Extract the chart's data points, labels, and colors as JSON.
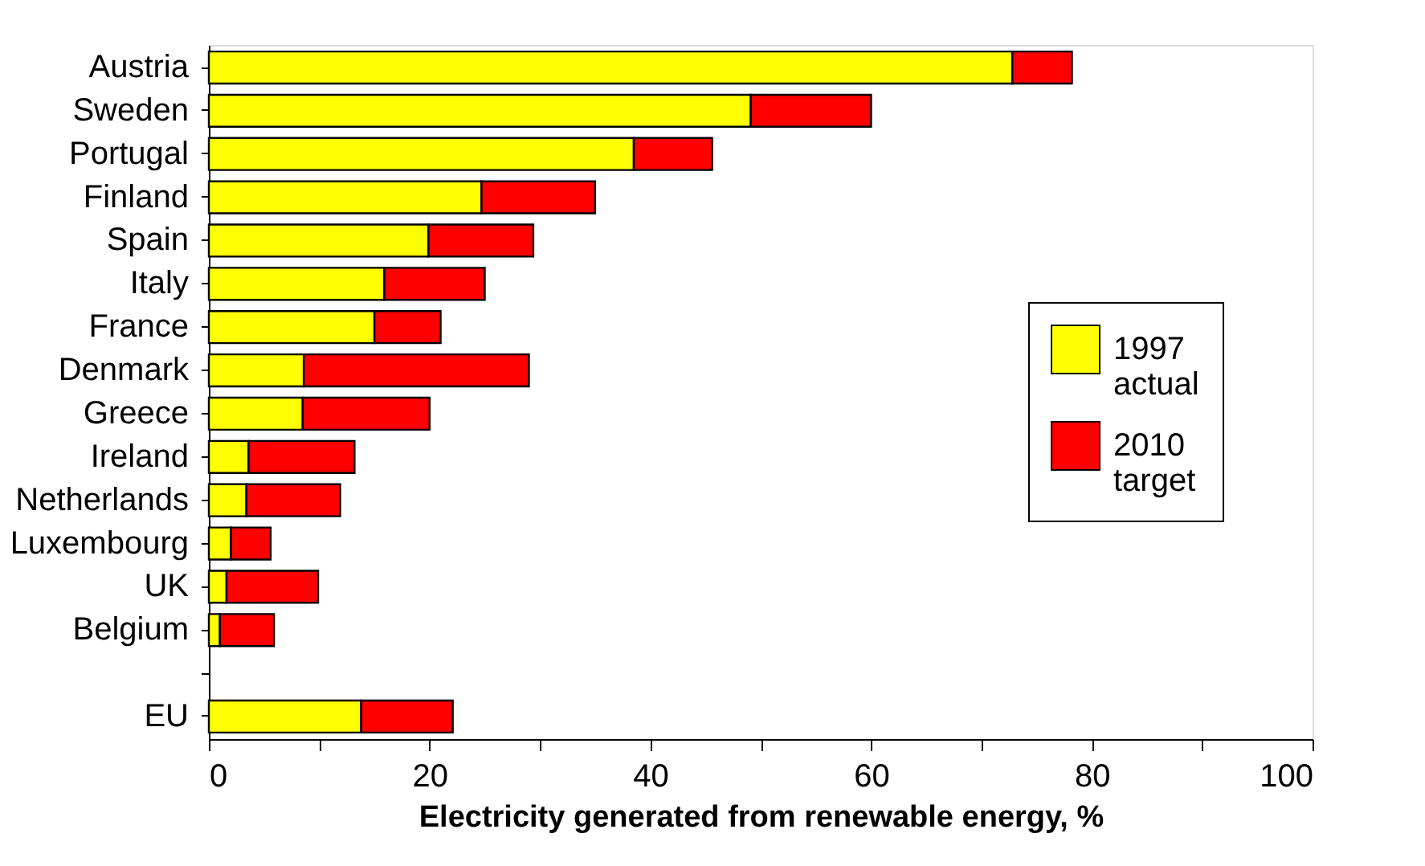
{
  "chart_data": {
    "type": "bar",
    "orientation": "horizontal",
    "stacked": true,
    "xlabel": "Electricity generated from renewable energy, %",
    "categories": [
      "Austria",
      "Sweden",
      "Portugal",
      "Finland",
      "Spain",
      "Italy",
      "France",
      "Denmark",
      "Greece",
      "Ireland",
      "Netherlands",
      "Luxembourg",
      "UK",
      "Belgium",
      null,
      "EU"
    ],
    "series": [
      {
        "name": "1997 actual",
        "color": "#ffff00",
        "values": [
          72.8,
          49.1,
          38.5,
          24.7,
          19.9,
          15.9,
          15.0,
          8.6,
          8.5,
          3.6,
          3.4,
          2.0,
          1.6,
          1.0,
          null,
          13.8
        ]
      },
      {
        "name": "2010 target",
        "color": "#ff0000",
        "values": [
          5.4,
          10.9,
          7.1,
          10.3,
          9.5,
          9.1,
          6.0,
          20.4,
          11.5,
          9.6,
          8.5,
          3.6,
          8.3,
          4.9,
          null,
          8.3
        ]
      }
    ],
    "xlim": [
      0,
      100
    ],
    "xticks": [
      0,
      {
        "value": 10,
        "label": null
      },
      20,
      {
        "value": 30,
        "label": null
      },
      40,
      {
        "value": 50,
        "label": null
      },
      60,
      {
        "value": 70,
        "label": null
      },
      80,
      {
        "value": 90,
        "label": null
      },
      100
    ],
    "grid": false,
    "legend": "right"
  }
}
